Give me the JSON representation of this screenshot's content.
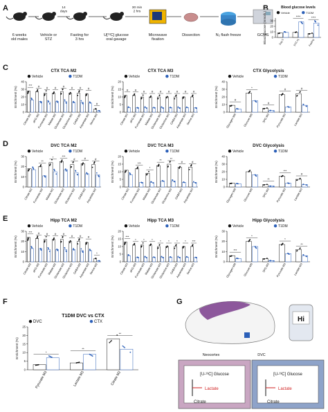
{
  "figure": {
    "panels": {
      "A": "A",
      "B": "B",
      "C": "C",
      "D": "D",
      "E": "E",
      "F": "F",
      "G": "G"
    },
    "workflow": {
      "steps": [
        "6 weeks\nold males",
        "Vehicle or\nSTZ",
        "Fasting for\n3 hrs",
        "U[¹³C] glucose\noral gavage",
        "Microwave\nfixation",
        "Dissection",
        "N₂ flash freeze",
        "GCMS"
      ],
      "durations": [
        "14\ndays",
        "30 min\n2 hrs"
      ]
    },
    "legend": {
      "vehicle": "Vehicle",
      "t1dm": "T1DM",
      "dvc": "DVC",
      "ctx": "CTX"
    },
    "brain": {
      "neocortex": "Neocortex",
      "dvc": "DVC",
      "meter": "Hi"
    },
    "pathway": {
      "glucose": "[U-¹³C] Glucose",
      "lactate": "Lactate",
      "citrate": "Citrate"
    },
    "colors": {
      "vehicle": "#ffffff",
      "t1dm": "#2b5fb8",
      "dvc_box": "#c9a6c2",
      "ctx_box": "#8ea3c9",
      "arrow_red": "#d02020",
      "brain_ctx": "#7a3c8c",
      "brain_dvc": "#2b5fb8"
    }
  },
  "chart_data": [
    {
      "id": "B",
      "type": "bar",
      "title": "Blood glucose levels",
      "ylabel": "Blood glucose (mmol/L)",
      "categories": [
        "Day 0",
        "STZ inj",
        "Fasting"
      ],
      "series": [
        {
          "name": "Vehicle",
          "values": [
            8,
            9,
            7
          ]
        },
        {
          "name": "T1DM",
          "values": [
            9,
            28,
            26
          ]
        }
      ],
      "ylim": [
        0,
        35
      ],
      "yticks": [
        0,
        10,
        20,
        30
      ],
      "sig": [
        "",
        "****",
        "****"
      ]
    },
    {
      "id": "C1",
      "type": "bar",
      "title": "CTX TCA M2",
      "ylabel": "Enrichment (%)",
      "categories": [
        "Citrate M2",
        "aKG M2",
        "Fumarate M2",
        "Malate M2",
        "Glutamate M2",
        "Glutamine M2",
        "GABA M2",
        "Aspartate M2",
        "Serine M2"
      ],
      "series": [
        {
          "name": "Vehicle",
          "values": [
            28,
            27,
            25,
            25,
            27,
            25,
            25,
            24,
            4
          ]
        },
        {
          "name": "T1DM",
          "values": [
            16,
            14,
            13,
            14,
            14,
            13,
            13,
            12,
            2
          ]
        }
      ],
      "ylim": [
        0,
        40
      ],
      "yticks": [
        0,
        10,
        20,
        30,
        40
      ],
      "sig": [
        "***",
        "#",
        "#",
        "#",
        "#",
        "#",
        "#",
        "#",
        "#"
      ]
    },
    {
      "id": "C2",
      "type": "bar",
      "title": "CTX TCA M3",
      "ylabel": "Enrichment (%)",
      "categories": [
        "Citrate M3",
        "aKG M3",
        "Fumarate M3",
        "Malate M3",
        "Glutamate M3",
        "Glutamine M3",
        "GABA M3",
        "Aspartate M3",
        "Serine M3"
      ],
      "series": [
        {
          "name": "Vehicle",
          "values": [
            11,
            11,
            10,
            10,
            10,
            10,
            10,
            10,
            10
          ]
        },
        {
          "name": "T1DM",
          "values": [
            3,
            3,
            3,
            3,
            3,
            3,
            3,
            3,
            3
          ]
        }
      ],
      "ylim": [
        0,
        20
      ],
      "yticks": [
        0,
        5,
        10,
        15,
        20
      ],
      "sig": [
        "#",
        "#",
        "#",
        "#",
        "#",
        "#",
        "#",
        "#",
        "#"
      ]
    },
    {
      "id": "C3",
      "type": "bar",
      "title": "CTX Glycolysis",
      "ylabel": "Enrichment (%)",
      "categories": [
        "Glycogen M6",
        "Glucose M6",
        "3PG M3",
        "Pyruvate M3",
        "Lactate M3"
      ],
      "series": [
        {
          "name": "Vehicle",
          "values": [
            9,
            25,
            5,
            23,
            24
          ]
        },
        {
          "name": "T1DM",
          "values": [
            4,
            15,
            2,
            7,
            9
          ]
        }
      ],
      "ylim": [
        0,
        40
      ],
      "yticks": [
        0,
        10,
        20,
        30,
        40
      ],
      "sig": [
        "#",
        "*",
        "#",
        "#",
        "#"
      ]
    },
    {
      "id": "D1",
      "type": "bar",
      "title": "DVC TCA M2",
      "ylabel": "Enrichment (%)",
      "categories": [
        "Citrate M2",
        "Fumarate M2",
        "Malate M2",
        "Glutamate M2",
        "Glutamine M2",
        "GABA M2",
        "Aspartate M2"
      ],
      "series": [
        {
          "name": "Vehicle",
          "values": [
            18,
            20,
            24,
            25,
            22,
            23,
            22
          ]
        },
        {
          "name": "T1DM",
          "values": [
            17,
            11,
            15,
            17,
            14,
            13,
            12
          ]
        }
      ],
      "ylim": [
        0,
        30
      ],
      "yticks": [
        0,
        10,
        20,
        30
      ],
      "sig": [
        "",
        "**",
        "*",
        "***",
        "#",
        "#",
        "#"
      ]
    },
    {
      "id": "D2",
      "type": "bar",
      "title": "DVC TCA M3",
      "ylabel": "Enrichment (%)",
      "categories": [
        "Citrate M3",
        "Fumarate M3",
        "Malate M3",
        "Glutamate M3",
        "Glutamine M3",
        "GABA M3",
        "Aspartate M3"
      ],
      "series": [
        {
          "name": "Vehicle",
          "values": [
            11,
            12,
            9,
            14,
            15,
            13,
            13
          ]
        },
        {
          "name": "T1DM",
          "values": [
            8,
            3,
            3,
            4,
            4,
            3,
            3
          ]
        }
      ],
      "ylim": [
        0,
        20
      ],
      "yticks": [
        0,
        5,
        10,
        15,
        20
      ],
      "sig": [
        "",
        "***",
        "*",
        "**",
        "**",
        "#",
        "#"
      ]
    },
    {
      "id": "D3",
      "type": "bar",
      "title": "DVC Glycolysis",
      "ylabel": "Enrichment (%)",
      "categories": [
        "Glycogen M6",
        "Glucose M6",
        "3PG M3",
        "Pyruvate M3",
        "Lactate M3"
      ],
      "series": [
        {
          "name": "Vehicle",
          "values": [
            5,
            20,
            3,
            14,
            10
          ]
        },
        {
          "name": "T1DM",
          "values": [
            4,
            16,
            1,
            5,
            3
          ]
        }
      ],
      "ylim": [
        0,
        40
      ],
      "yticks": [
        0,
        10,
        20,
        30,
        40
      ],
      "sig": [
        "",
        "",
        "**",
        "***",
        "#"
      ]
    },
    {
      "id": "E1",
      "type": "bar",
      "title": "Hipp TCA M2",
      "ylabel": "Enrichment (%)",
      "categories": [
        "Citrate M2",
        "aKG M2",
        "Fumarate M2",
        "Malate M2",
        "Glutamate M2",
        "Glutamine M2",
        "GABA M2",
        "Aspartate M2",
        "Serine M2"
      ],
      "series": [
        {
          "name": "Vehicle",
          "values": [
            24,
            23,
            22,
            22,
            22,
            20,
            20,
            19,
            3
          ]
        },
        {
          "name": "T1DM",
          "values": [
            13,
            13,
            12,
            12,
            12,
            12,
            11,
            11,
            1
          ]
        }
      ],
      "ylim": [
        0,
        30
      ],
      "yticks": [
        0,
        10,
        20,
        30
      ],
      "sig": [
        "***",
        "#",
        "#",
        "#",
        "#",
        "#",
        "#",
        "#",
        "*"
      ]
    },
    {
      "id": "E2",
      "type": "bar",
      "title": "Hipp TCA M3",
      "ylabel": "Enrichment (%)",
      "categories": [
        "Citrate M3",
        "aKG M3",
        "Fumarate M3",
        "Malate M3",
        "Glutamate M3",
        "Glutamine M3",
        "GABA M3",
        "Aspartate M3",
        "Serine M3"
      ],
      "series": [
        {
          "name": "Vehicle",
          "values": [
            13,
            11,
            11,
            11,
            10,
            10,
            10,
            10,
            10
          ]
        },
        {
          "name": "T1DM",
          "values": [
            4,
            3,
            3,
            3,
            3,
            3,
            3,
            3,
            3
          ]
        }
      ],
      "ylim": [
        0,
        20
      ],
      "yticks": [
        0,
        5,
        10,
        15,
        20
      ],
      "sig": [
        "***",
        "*",
        "*",
        "*",
        "*",
        "*",
        "*",
        "*",
        "***"
      ]
    },
    {
      "id": "E3",
      "type": "bar",
      "title": "Hipp Glycolysis",
      "ylabel": "Enrichment (%)",
      "categories": [
        "Glycogen M6",
        "Glucose M6",
        "3PG M3",
        "Pyruvate M3",
        "Lactate M3"
      ],
      "series": [
        {
          "name": "Vehicle",
          "values": [
            6,
            20,
            3,
            17,
            12
          ]
        },
        {
          "name": "T1DM",
          "values": [
            3,
            15,
            1,
            8,
            6
          ]
        }
      ],
      "ylim": [
        0,
        30
      ],
      "yticks": [
        0,
        10,
        20,
        30
      ],
      "sig": [
        "***",
        "*",
        "",
        "*",
        "**"
      ]
    },
    {
      "id": "F",
      "type": "bar",
      "title": "T1DM DVC vs CTX",
      "ylabel": "Enrichment (%)",
      "categories": [
        "Pyruvate M3",
        "Lactate M3",
        "Citrate M2"
      ],
      "series": [
        {
          "name": "DVC",
          "values": [
            3,
            4,
            18
          ]
        },
        {
          "name": "CTX",
          "values": [
            7,
            9,
            12
          ]
        }
      ],
      "ylim": [
        0,
        25
      ],
      "yticks": [
        0,
        5,
        10,
        15,
        20,
        25
      ],
      "sig": [
        "*",
        "**",
        "**"
      ]
    }
  ]
}
